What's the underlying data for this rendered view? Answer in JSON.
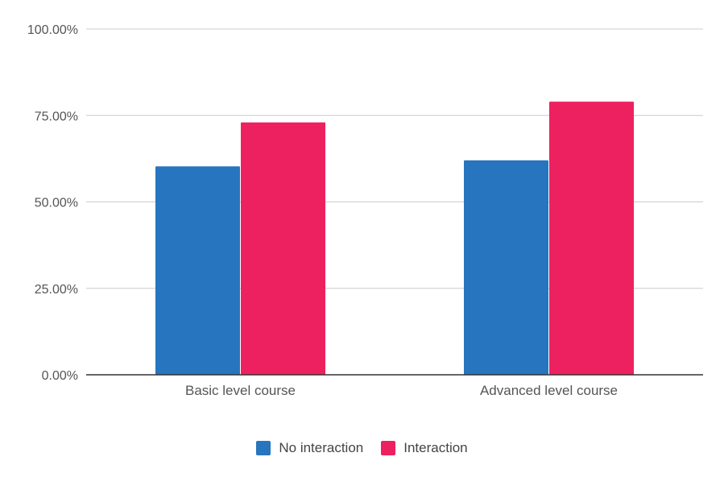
{
  "chart_data": {
    "type": "bar",
    "categories": [
      "Basic level course",
      "Advanced level course"
    ],
    "series": [
      {
        "name": "No interaction",
        "values": [
          60.3,
          62.0
        ],
        "color": "#2775BE"
      },
      {
        "name": "Interaction",
        "values": [
          73.0,
          79.0
        ],
        "color": "#EE2160"
      }
    ],
    "ylim": [
      0,
      100
    ],
    "yticks": [
      "0.00%",
      "25.00%",
      "50.00%",
      "75.00%",
      "100.00%"
    ],
    "ytick_values": [
      0,
      25,
      50,
      75,
      100
    ],
    "grid": true,
    "legend_position": "bottom"
  }
}
